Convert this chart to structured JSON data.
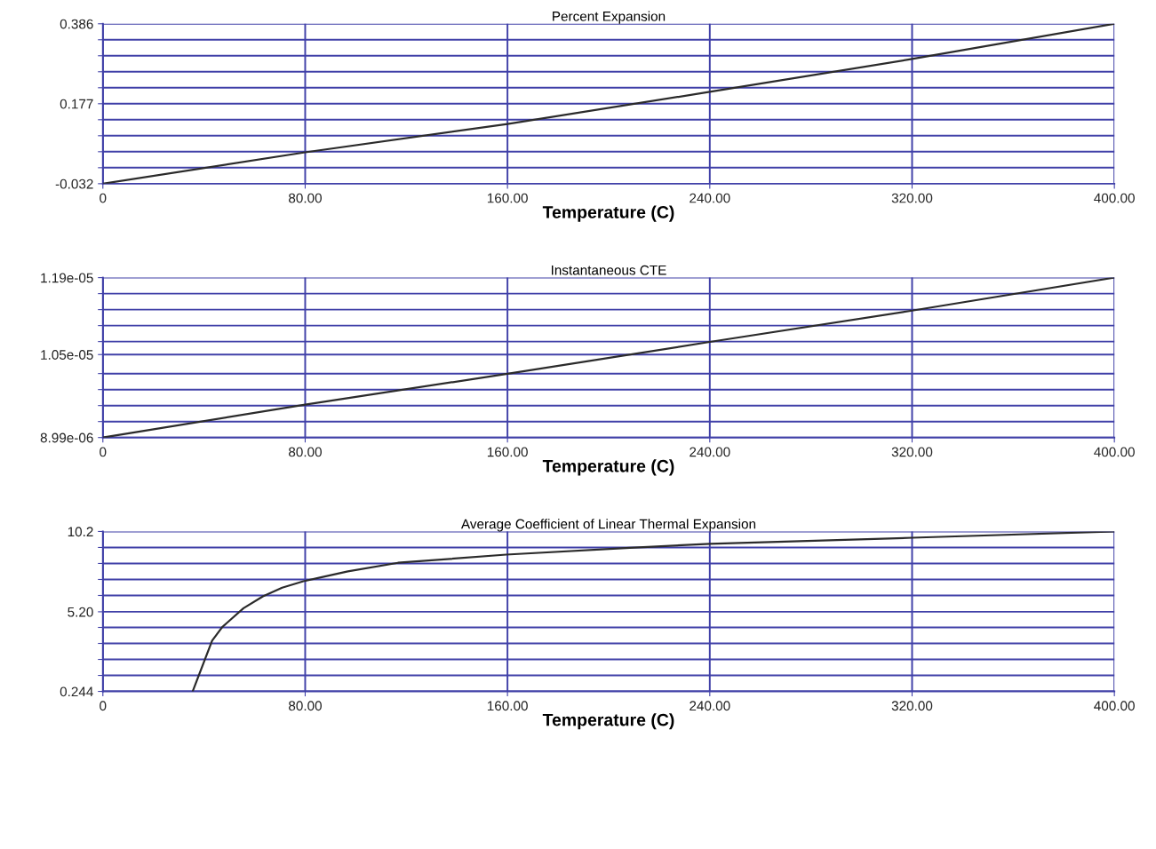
{
  "chart_data": [
    {
      "type": "line",
      "title": "Percent Expansion",
      "xlabel": "Temperature (C)",
      "x": [
        0,
        80,
        160,
        240,
        320,
        400
      ],
      "series": [
        {
          "color": "#2b2b2b",
          "values": [
            -0.032,
            0.05,
            0.124,
            0.208,
            0.294,
            0.386
          ]
        }
      ],
      "xlim": [
        0,
        400
      ],
      "xticks": [
        0,
        {
          "value": 80,
          "label": "80.00"
        },
        {
          "value": 160,
          "label": "160.00"
        },
        {
          "value": 240,
          "label": "240.00"
        },
        {
          "value": 320,
          "label": "320.00"
        },
        {
          "value": 400,
          "label": "400.00"
        }
      ],
      "ylim": [
        -0.032,
        0.386
      ],
      "yticks": [
        -0.032,
        {
          "value": 0.0098,
          "label": null
        },
        {
          "value": 0.0516,
          "label": null
        },
        {
          "value": 0.0934,
          "label": null
        },
        {
          "value": 0.1352,
          "label": null
        },
        0.177,
        {
          "value": 0.2188,
          "label": null
        },
        {
          "value": 0.2606,
          "label": null
        },
        {
          "value": 0.3024,
          "label": null
        },
        {
          "value": 0.3442,
          "label": null
        },
        0.386
      ],
      "grid": true,
      "legend": false
    },
    {
      "type": "line",
      "title": "Instantaneous CTE",
      "xlabel": "Temperature (C)",
      "x": [
        0,
        80,
        160,
        240,
        320,
        400
      ],
      "series": [
        {
          "color": "#2b2b2b",
          "values": [
            8.99e-06,
            9.59e-06,
            1.015e-05,
            1.073e-05,
            1.13e-05,
            1.19e-05
          ]
        }
      ],
      "xlim": [
        0,
        400
      ],
      "xticks": [
        0,
        {
          "value": 80,
          "label": "80.00"
        },
        {
          "value": 160,
          "label": "160.00"
        },
        {
          "value": 240,
          "label": "240.00"
        },
        {
          "value": 320,
          "label": "320.00"
        },
        {
          "value": 400,
          "label": "400.00"
        }
      ],
      "ylim": [
        8.99e-06,
        1.19e-05
      ],
      "yticks": [
        {
          "value": 8.99e-06,
          "label": "8.99e-06"
        },
        {
          "value": 9.281e-06,
          "label": null
        },
        {
          "value": 9.572e-06,
          "label": null
        },
        {
          "value": 9.863e-06,
          "label": null
        },
        {
          "value": 1.0154e-05,
          "label": null
        },
        {
          "value": 1.05e-05,
          "label": "1.05e-05"
        },
        {
          "value": 1.0736e-05,
          "label": null
        },
        {
          "value": 1.1027e-05,
          "label": null
        },
        {
          "value": 1.1318e-05,
          "label": null
        },
        {
          "value": 1.1609e-05,
          "label": null
        },
        {
          "value": 1.19e-05,
          "label": "1.19e-05"
        }
      ],
      "grid": true,
      "legend": false
    },
    {
      "type": "line",
      "title": "Average Coefficient of Linear Thermal Expansion",
      "xlabel": "Temperature (C)",
      "x": [
        35.5,
        43.2,
        47.2,
        55.6,
        63.3,
        70.9,
        79.3,
        86.2,
        96.9,
        116.7,
        159.5,
        208.4,
        240,
        320,
        400
      ],
      "series": [
        {
          "color": "#2b2b2b",
          "values": [
            0.244,
            3.4,
            4.25,
            5.42,
            6.16,
            6.7,
            7.1,
            7.34,
            7.72,
            8.25,
            8.76,
            9.18,
            9.43,
            9.81,
            10.2
          ]
        }
      ],
      "xlim": [
        0,
        400
      ],
      "xticks": [
        0,
        {
          "value": 80,
          "label": "80.00"
        },
        {
          "value": 160,
          "label": "160.00"
        },
        {
          "value": 240,
          "label": "240.00"
        },
        {
          "value": 320,
          "label": "320.00"
        },
        {
          "value": 400,
          "label": "400.00"
        }
      ],
      "ylim": [
        0.244,
        10.2
      ],
      "yticks": [
        0.244,
        {
          "value": 1.2396,
          "label": null
        },
        {
          "value": 2.2352,
          "label": null
        },
        {
          "value": 3.2308,
          "label": null
        },
        {
          "value": 4.2264,
          "label": null
        },
        {
          "value": 5.2,
          "label": "5.20"
        },
        {
          "value": 6.2176,
          "label": null
        },
        {
          "value": 7.2132,
          "label": null
        },
        {
          "value": 8.2088,
          "label": null
        },
        {
          "value": 9.2044,
          "label": null
        },
        10.2
      ],
      "grid": true,
      "legend": false
    }
  ]
}
